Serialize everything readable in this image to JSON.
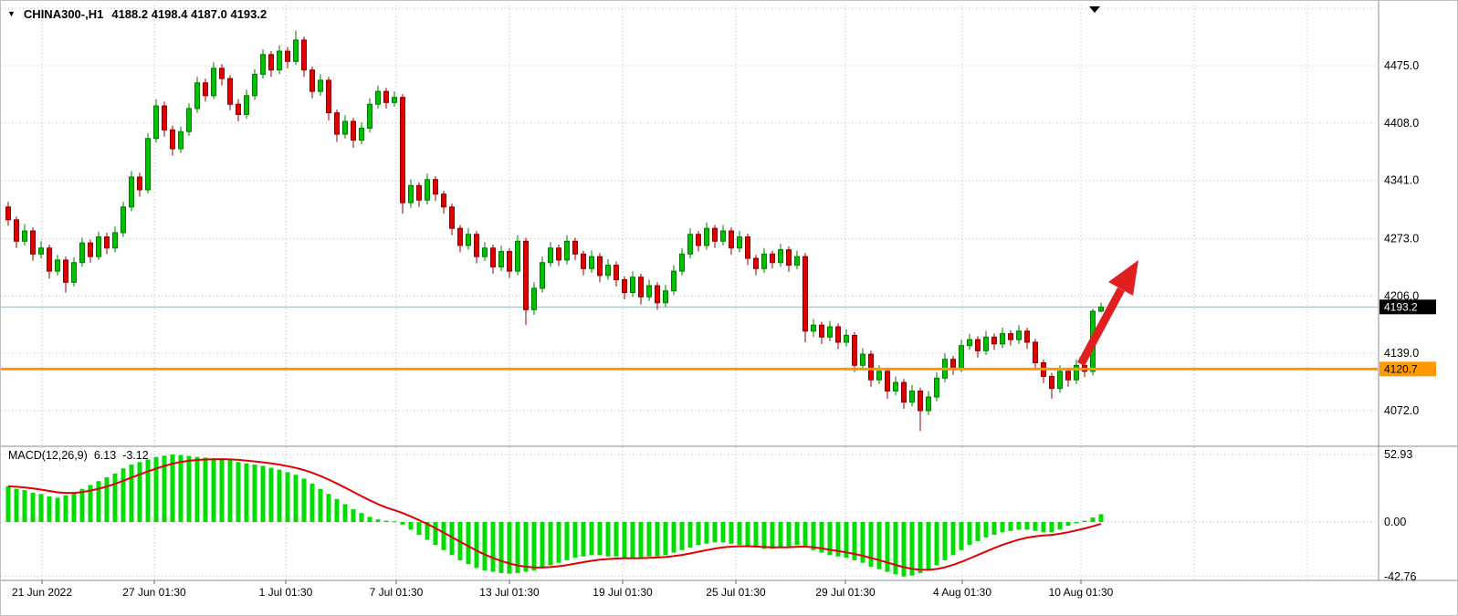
{
  "header": {
    "symbol": "CHINA300-,H1",
    "ohlc": "4188.2 4198.4 4187.0 4193.2"
  },
  "indicator": {
    "name": "MACD(12,26,9)",
    "macd_value": "6.13",
    "signal_value": "-3.12"
  },
  "price_axis": {
    "label_values": [
      4475,
      4408,
      4341,
      4273,
      4206,
      4139,
      4072
    ],
    "gridline_values": [
      4542,
      4475,
      4408,
      4341,
      4273,
      4206,
      4139,
      4072
    ]
  },
  "macd_axis": {
    "labels": [
      "52.93",
      "0.00",
      "-42.76"
    ],
    "values": [
      52.93,
      0,
      -42.76
    ]
  },
  "time_axis": {
    "ticks": [
      {
        "label": "21 Jun 2022",
        "x": 45
      },
      {
        "label": "27 Jun 01:30",
        "x": 168
      },
      {
        "label": "1 Jul 01:30",
        "x": 312
      },
      {
        "label": "7 Jul 01:30",
        "x": 433
      },
      {
        "label": "13 Jul 01:30",
        "x": 557
      },
      {
        "label": "19 Jul 01:30",
        "x": 681
      },
      {
        "label": "25 Jul 01:30",
        "x": 805
      },
      {
        "label": "29 Jul 01:30",
        "x": 925
      },
      {
        "label": "4 Aug 01:30",
        "x": 1053
      },
      {
        "label": "10 Aug 01:30",
        "x": 1183
      },
      {
        "label": "",
        "x": 1307
      },
      {
        "label": "",
        "x": 1431
      }
    ]
  },
  "price_line": {
    "value": 4193.2,
    "label": "4193.2",
    "line_color": "#9db3bd",
    "label_bg": "#000000",
    "label_fg": "#ffffff"
  },
  "horizontal_line": {
    "value": 4120.7,
    "label": "4120.7",
    "color": "#ff9900",
    "label_fg": "#000000"
  },
  "annotation_arrow": {
    "color": "#e02020",
    "direction": "up-right"
  },
  "colors": {
    "up_fill": "#00c200",
    "up_edge": "#007a00",
    "down_fill": "#e00000",
    "down_edge": "#8e0000",
    "hist": "#00dd00",
    "signal": "#e00000",
    "grid": "#b9b9b9",
    "axis_text": "#000000",
    "divider": "#8c8c8c",
    "tick": "#606060",
    "scroll_marker": "#000000"
  },
  "chart_data": {
    "type": "candlestick",
    "title": "CHINA300-,H1",
    "symbol": "CHINA300-",
    "timeframe": "H1",
    "current_bar": {
      "open": 4188.2,
      "high": 4198.4,
      "low": 4187.0,
      "close": 4193.2
    },
    "y_axis_ticks": [
      4475.0,
      4408.0,
      4341.0,
      4273.0,
      4206.0,
      4139.0,
      4072.0
    ],
    "x_axis_ticks": [
      "21 Jun 2022",
      "27 Jun 01:30",
      "1 Jul 01:30",
      "7 Jul 01:30",
      "13 Jul 01:30",
      "19 Jul 01:30",
      "25 Jul 01:30",
      "29 Jul 01:30",
      "4 Aug 01:30",
      "10 Aug 01:30"
    ],
    "overlays": {
      "current_price": 4193.2,
      "horizontal_line": 4120.7,
      "annotation": "red up-right trend arrow near latest bars"
    },
    "ohlc_format": [
      "open",
      "high",
      "low",
      "close"
    ],
    "candles": [
      [
        4310,
        4316,
        4288,
        4295
      ],
      [
        4295,
        4299,
        4262,
        4270
      ],
      [
        4270,
        4290,
        4265,
        4282
      ],
      [
        4282,
        4286,
        4247,
        4255
      ],
      [
        4255,
        4270,
        4250,
        4262
      ],
      [
        4262,
        4266,
        4226,
        4235
      ],
      [
        4235,
        4254,
        4230,
        4248
      ],
      [
        4248,
        4252,
        4210,
        4222
      ],
      [
        4222,
        4251,
        4217,
        4245
      ],
      [
        4245,
        4274,
        4240,
        4268
      ],
      [
        4268,
        4272,
        4245,
        4252
      ],
      [
        4252,
        4281,
        4248,
        4275
      ],
      [
        4275,
        4280,
        4255,
        4262
      ],
      [
        4262,
        4287,
        4257,
        4280
      ],
      [
        4280,
        4316,
        4275,
        4310
      ],
      [
        4310,
        4352,
        4305,
        4345
      ],
      [
        4345,
        4350,
        4322,
        4330
      ],
      [
        4330,
        4396,
        4326,
        4390
      ],
      [
        4390,
        4436,
        4385,
        4428
      ],
      [
        4428,
        4433,
        4392,
        4400
      ],
      [
        4400,
        4405,
        4370,
        4378
      ],
      [
        4378,
        4404,
        4373,
        4398
      ],
      [
        4398,
        4431,
        4393,
        4425
      ],
      [
        4425,
        4462,
        4420,
        4455
      ],
      [
        4455,
        4460,
        4433,
        4440
      ],
      [
        4440,
        4479,
        4436,
        4472
      ],
      [
        4472,
        4477,
        4452,
        4460
      ],
      [
        4460,
        4464,
        4423,
        4430
      ],
      [
        4430,
        4436,
        4410,
        4418
      ],
      [
        4418,
        4447,
        4413,
        4440
      ],
      [
        4440,
        4471,
        4435,
        4465
      ],
      [
        4465,
        4494,
        4460,
        4488
      ],
      [
        4488,
        4492,
        4462,
        4470
      ],
      [
        4470,
        4499,
        4465,
        4492
      ],
      [
        4492,
        4497,
        4472,
        4480
      ],
      [
        4480,
        4516,
        4476,
        4505
      ],
      [
        4505,
        4509,
        4462,
        4470
      ],
      [
        4470,
        4474,
        4437,
        4445
      ],
      [
        4445,
        4465,
        4440,
        4458
      ],
      [
        4458,
        4462,
        4411,
        4420
      ],
      [
        4420,
        4424,
        4386,
        4395
      ],
      [
        4395,
        4417,
        4390,
        4410
      ],
      [
        4410,
        4414,
        4379,
        4388
      ],
      [
        4388,
        4409,
        4383,
        4402
      ],
      [
        4402,
        4437,
        4397,
        4430
      ],
      [
        4430,
        4452,
        4425,
        4445
      ],
      [
        4445,
        4449,
        4425,
        4432
      ],
      [
        4432,
        4445,
        4427,
        4438
      ],
      [
        4438,
        4442,
        4302,
        4315
      ],
      [
        4315,
        4342,
        4309,
        4335
      ],
      [
        4335,
        4339,
        4310,
        4318
      ],
      [
        4318,
        4349,
        4313,
        4342
      ],
      [
        4342,
        4346,
        4317,
        4325
      ],
      [
        4325,
        4329,
        4302,
        4310
      ],
      [
        4310,
        4314,
        4277,
        4285
      ],
      [
        4285,
        4289,
        4257,
        4265
      ],
      [
        4265,
        4285,
        4260,
        4278
      ],
      [
        4278,
        4282,
        4244,
        4252
      ],
      [
        4252,
        4269,
        4247,
        4262
      ],
      [
        4262,
        4266,
        4232,
        4240
      ],
      [
        4240,
        4265,
        4235,
        4258
      ],
      [
        4258,
        4262,
        4227,
        4235
      ],
      [
        4235,
        4277,
        4230,
        4270
      ],
      [
        4270,
        4274,
        4172,
        4190
      ],
      [
        4190,
        4222,
        4184,
        4215
      ],
      [
        4215,
        4252,
        4210,
        4245
      ],
      [
        4245,
        4269,
        4240,
        4262
      ],
      [
        4262,
        4266,
        4241,
        4248
      ],
      [
        4248,
        4277,
        4243,
        4270
      ],
      [
        4270,
        4274,
        4248,
        4255
      ],
      [
        4255,
        4259,
        4230,
        4238
      ],
      [
        4238,
        4259,
        4233,
        4252
      ],
      [
        4252,
        4256,
        4222,
        4230
      ],
      [
        4230,
        4249,
        4225,
        4242
      ],
      [
        4242,
        4246,
        4217,
        4225
      ],
      [
        4225,
        4229,
        4202,
        4210
      ],
      [
        4210,
        4235,
        4205,
        4228
      ],
      [
        4228,
        4232,
        4196,
        4205
      ],
      [
        4205,
        4225,
        4200,
        4218
      ],
      [
        4218,
        4222,
        4190,
        4198
      ],
      [
        4198,
        4219,
        4193,
        4212
      ],
      [
        4212,
        4242,
        4207,
        4235
      ],
      [
        4235,
        4262,
        4230,
        4255
      ],
      [
        4255,
        4285,
        4250,
        4278
      ],
      [
        4278,
        4282,
        4258,
        4265
      ],
      [
        4265,
        4292,
        4260,
        4285
      ],
      [
        4285,
        4289,
        4262,
        4270
      ],
      [
        4270,
        4289,
        4265,
        4282
      ],
      [
        4282,
        4286,
        4254,
        4262
      ],
      [
        4262,
        4282,
        4257,
        4275
      ],
      [
        4275,
        4279,
        4242,
        4250
      ],
      [
        4250,
        4254,
        4230,
        4238
      ],
      [
        4238,
        4262,
        4233,
        4255
      ],
      [
        4255,
        4259,
        4238,
        4245
      ],
      [
        4245,
        4267,
        4240,
        4260
      ],
      [
        4260,
        4264,
        4234,
        4242
      ],
      [
        4242,
        4259,
        4237,
        4252
      ],
      [
        4252,
        4256,
        4152,
        4165
      ],
      [
        4165,
        4179,
        4158,
        4172
      ],
      [
        4172,
        4176,
        4150,
        4158
      ],
      [
        4158,
        4177,
        4153,
        4170
      ],
      [
        4170,
        4174,
        4144,
        4152
      ],
      [
        4152,
        4167,
        4147,
        4160
      ],
      [
        4160,
        4164,
        4117,
        4125
      ],
      [
        4125,
        4145,
        4120,
        4138
      ],
      [
        4138,
        4142,
        4100,
        4108
      ],
      [
        4108,
        4125,
        4103,
        4118
      ],
      [
        4118,
        4122,
        4086,
        4095
      ],
      [
        4095,
        4112,
        4090,
        4105
      ],
      [
        4105,
        4109,
        4074,
        4082
      ],
      [
        4082,
        4102,
        4077,
        4095
      ],
      [
        4095,
        4099,
        4048,
        4072
      ],
      [
        4072,
        4095,
        4067,
        4088
      ],
      [
        4088,
        4117,
        4083,
        4110
      ],
      [
        4110,
        4139,
        4105,
        4132
      ],
      [
        4132,
        4136,
        4114,
        4122
      ],
      [
        4122,
        4155,
        4117,
        4148
      ],
      [
        4148,
        4162,
        4143,
        4155
      ],
      [
        4155,
        4159,
        4134,
        4142
      ],
      [
        4142,
        4165,
        4137,
        4158
      ],
      [
        4158,
        4162,
        4143,
        4150
      ],
      [
        4150,
        4169,
        4145,
        4162
      ],
      [
        4162,
        4166,
        4148,
        4155
      ],
      [
        4155,
        4172,
        4150,
        4165
      ],
      [
        4165,
        4169,
        4144,
        4152
      ],
      [
        4152,
        4156,
        4120,
        4128
      ],
      [
        4128,
        4132,
        4104,
        4112
      ],
      [
        4112,
        4116,
        4086,
        4098
      ],
      [
        4098,
        4125,
        4093,
        4118
      ],
      [
        4118,
        4122,
        4100,
        4108
      ],
      [
        4108,
        4132,
        4103,
        4125
      ],
      [
        4125,
        4129,
        4111,
        4118
      ],
      [
        4118,
        4191,
        4113,
        4188.2
      ],
      [
        4188.2,
        4198.4,
        4187.0,
        4193.2
      ]
    ],
    "indicator_panel": {
      "type": "macd_histogram",
      "name": "MACD(12,26,9)",
      "macd_current": 6.13,
      "signal_current": -3.12,
      "y_ticks": [
        52.93,
        0.0,
        -42.76
      ],
      "histogram": [
        28,
        26,
        25,
        23,
        22,
        20,
        19,
        21,
        23,
        26,
        29,
        32,
        35,
        38,
        42,
        45,
        47,
        49,
        51,
        52,
        52.93,
        52.5,
        51.8,
        51,
        50.5,
        50,
        49.5,
        48.5,
        47,
        46,
        45,
        44,
        42.5,
        41,
        39,
        37,
        34,
        30,
        26,
        22,
        18,
        14,
        10,
        7,
        4,
        2,
        1,
        0.5,
        -2,
        -6,
        -10,
        -14,
        -18,
        -22,
        -26,
        -30,
        -33,
        -36,
        -38,
        -39,
        -40,
        -40.5,
        -40,
        -39,
        -38,
        -36,
        -34,
        -32,
        -30,
        -28,
        -27,
        -26,
        -26,
        -27,
        -27,
        -28,
        -28,
        -28,
        -27,
        -27,
        -26,
        -24,
        -22,
        -20,
        -18,
        -17,
        -16,
        -16,
        -17,
        -18,
        -19,
        -20,
        -21,
        -21,
        -20,
        -19,
        -18,
        -19,
        -22,
        -24,
        -26,
        -27,
        -28,
        -30,
        -32,
        -35,
        -37,
        -39,
        -41,
        -42.76,
        -42,
        -40,
        -38,
        -34,
        -30,
        -26,
        -22,
        -18,
        -15,
        -12,
        -10,
        -8,
        -7,
        -6,
        -6,
        -7,
        -8,
        -8,
        -6,
        -3,
        -1,
        1,
        3.5,
        6.13
      ]
    }
  }
}
